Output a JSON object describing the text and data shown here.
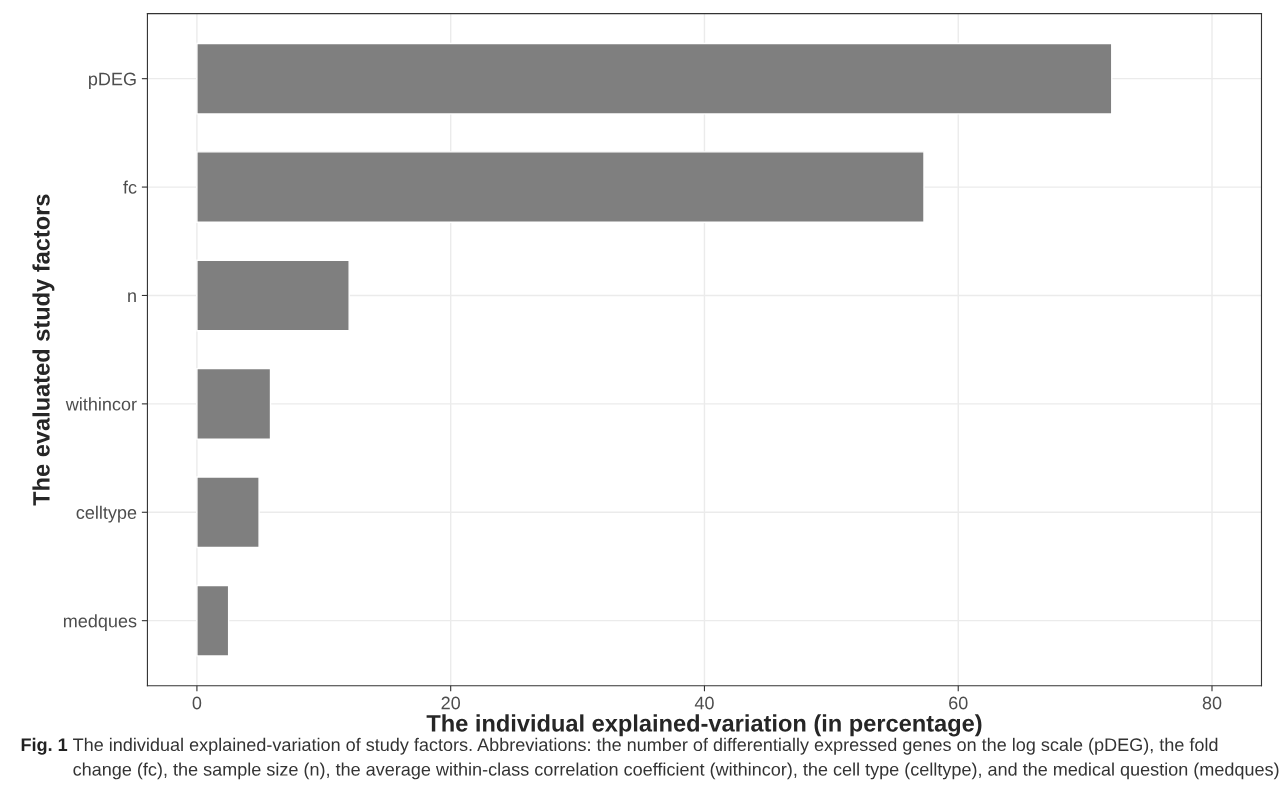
{
  "chart_data": {
    "type": "bar",
    "orientation": "horizontal",
    "xlabel": "The individual explained-variation (in percentage)",
    "ylabel": "The evaluated study factors",
    "categories": [
      "pDEG",
      "fc",
      "n",
      "withincor",
      "celltype",
      "medques"
    ],
    "values": [
      72.1,
      57.3,
      12.0,
      5.8,
      4.9,
      2.5
    ],
    "color": "#7f7f7f",
    "xlim": [
      -3.9,
      83.9
    ],
    "xticks": [
      0,
      20,
      40,
      60,
      80
    ],
    "grid": true,
    "annotations": [
      "Fig. 1",
      "The individual explained-variation of study factors. Abbreviations: the number of differentially expressed genes on the log scale (pDEG), the fold change (fc), the sample size (n), the average within-class correlation coefficient (withincor), the cell type (celltype), and the medical question (medques)"
    ]
  }
}
